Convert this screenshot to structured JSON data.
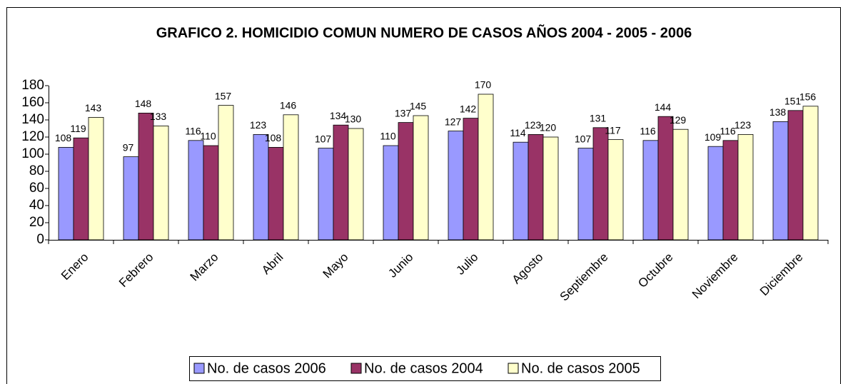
{
  "chart_data": {
    "type": "bar",
    "title": "GRAFICO 2. HOMICIDIO COMUN NUMERO DE CASOS AÑOS 2004 - 2005 - 2006",
    "categories": [
      "Enero",
      "Febrero",
      "Marzo",
      "Abril",
      "Mayo",
      "Junio",
      "Julio",
      "Agosto",
      "Septiembre",
      "Octubre",
      "Noviembre",
      "Diciembre"
    ],
    "series": [
      {
        "name": "No. de casos 2006",
        "color": "#9999ff",
        "values": [
          108,
          97,
          116,
          123,
          107,
          110,
          127,
          114,
          107,
          116,
          109,
          138
        ]
      },
      {
        "name": "No. de casos 2004",
        "color": "#993366",
        "values": [
          119,
          148,
          110,
          108,
          134,
          137,
          142,
          123,
          131,
          144,
          116,
          151
        ]
      },
      {
        "name": "No. de casos 2005",
        "color": "#ffffcc",
        "values": [
          143,
          133,
          157,
          146,
          130,
          145,
          170,
          120,
          117,
          129,
          123,
          156
        ]
      }
    ],
    "ylim": [
      0,
      180
    ],
    "yticks": [
      0,
      20,
      40,
      60,
      80,
      100,
      120,
      140,
      160,
      180
    ],
    "grid": false,
    "legend": "bottom"
  }
}
